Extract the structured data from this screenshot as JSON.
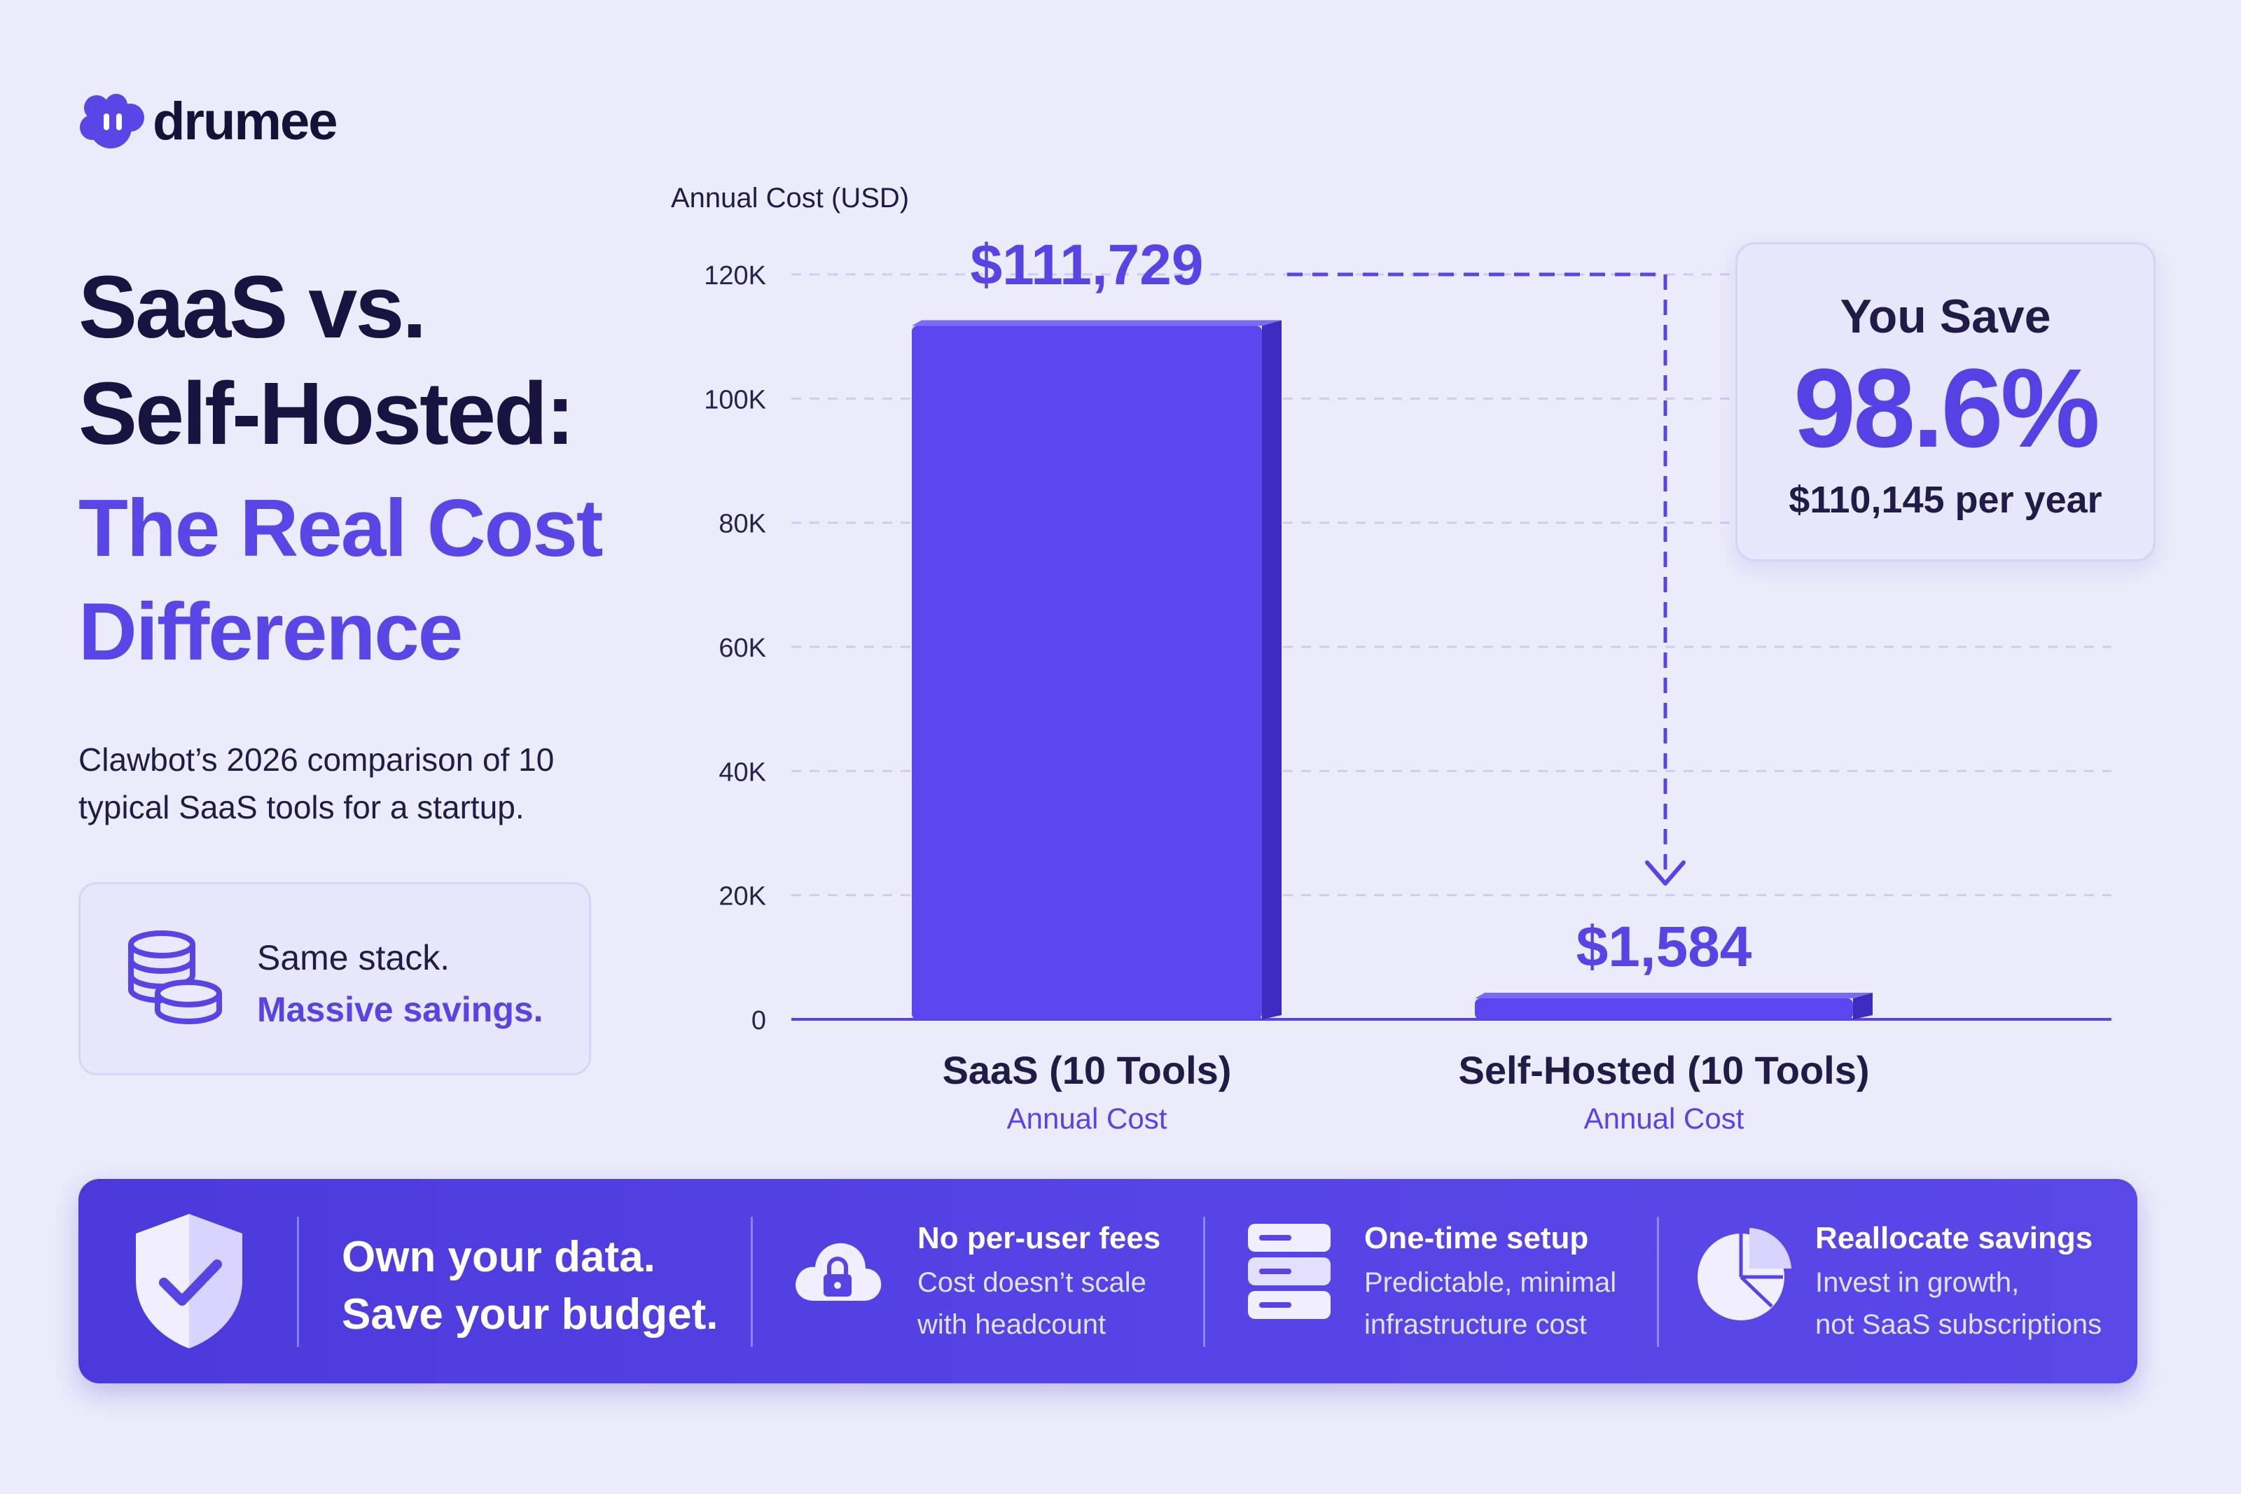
{
  "brand": {
    "name": "drumee"
  },
  "headline": {
    "line1": "SaaS vs.",
    "line2": "Self-Hosted:",
    "line3": "The Real Cost",
    "line4": "Difference"
  },
  "description": {
    "line1": "Clawbot’s 2026 comparison of 10",
    "line2": "typical SaaS tools for a startup."
  },
  "stack_card": {
    "line1": "Same stack.",
    "line2": "Massive savings.",
    "icon": "coins-icon"
  },
  "savings": {
    "heading": "You Save",
    "percent": "98.6%",
    "amount": "$110,145 per year"
  },
  "chart_data": {
    "type": "bar",
    "ylabel": "Annual Cost (USD)",
    "ylim": [
      0,
      120000
    ],
    "yticks": [
      {
        "value": 0,
        "label": "0"
      },
      {
        "value": 20000,
        "label": "20K"
      },
      {
        "value": 40000,
        "label": "40K"
      },
      {
        "value": 60000,
        "label": "60K"
      },
      {
        "value": 80000,
        "label": "80K"
      },
      {
        "value": 100000,
        "label": "100K"
      },
      {
        "value": 120000,
        "label": "120K"
      }
    ],
    "grid": true,
    "categories": [
      "SaaS (10 Tools)",
      "Self-Hosted (10 Tools)"
    ],
    "category_sublabels": [
      "Annual Cost",
      "Annual Cost"
    ],
    "values": [
      111729,
      1584
    ],
    "value_labels": [
      "$111,729",
      "$1,584"
    ],
    "annotation": "dashed arrow from SaaS bar value to Self-Hosted bar value"
  },
  "banner": {
    "main_line1": "Own your data.",
    "main_line2": "Save your budget.",
    "features": [
      {
        "icon": "cloud-lock-icon",
        "title": "No per-user fees",
        "line1": "Cost doesn’t scale",
        "line2": "with headcount"
      },
      {
        "icon": "server-icon",
        "title": "One-time setup",
        "line1": "Predictable, minimal",
        "line2": "infrastructure cost"
      },
      {
        "icon": "pie-chart-icon",
        "title": "Reallocate savings",
        "line1": "Invest in growth,",
        "line2": "not SaaS subscriptions"
      }
    ]
  },
  "colors": {
    "accent": "#5843e4",
    "bar": "#5a45ee",
    "background": "#ecebfb",
    "text": "#171442"
  }
}
